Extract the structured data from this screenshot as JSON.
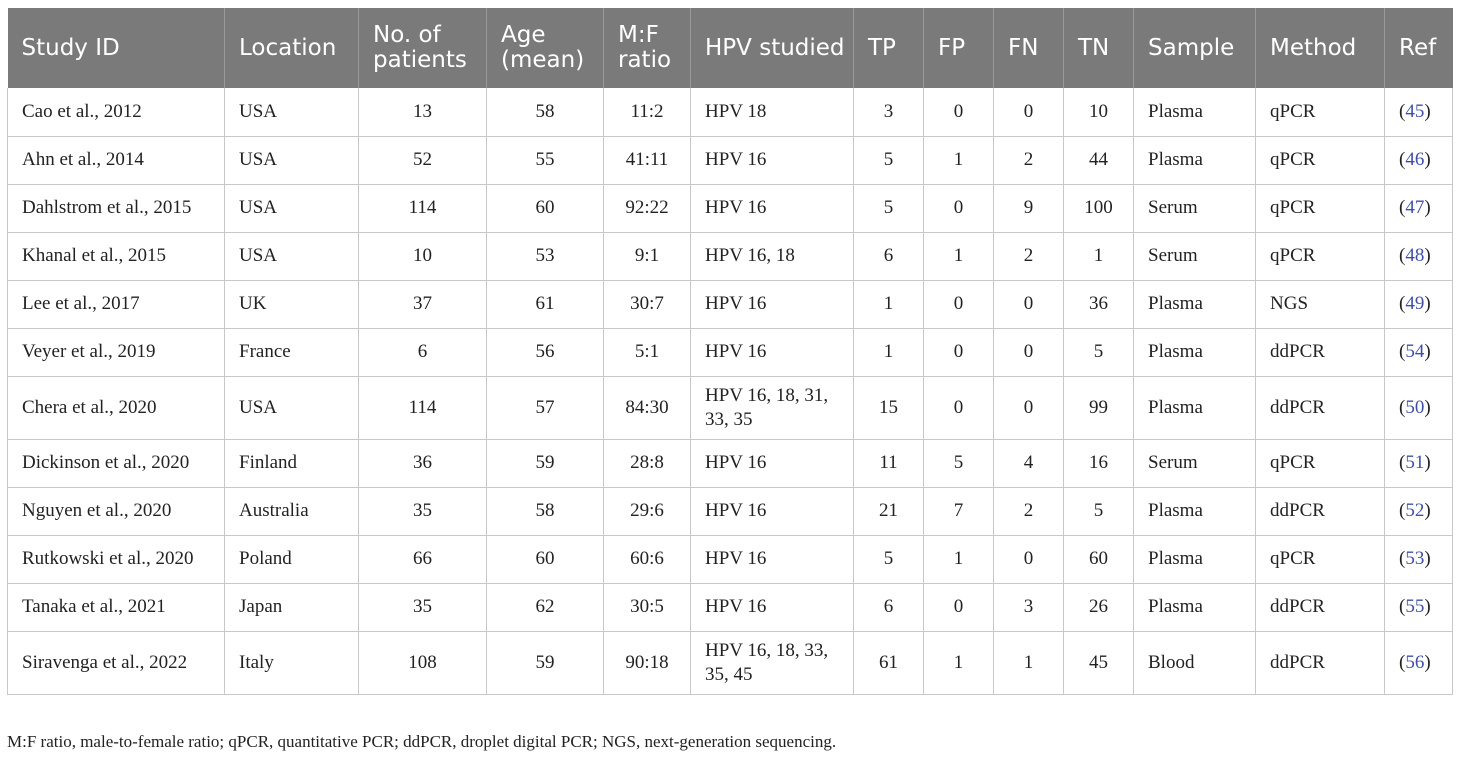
{
  "headers": [
    "Study ID",
    "Location",
    "No. of patients",
    "Age (mean)",
    "M:F ratio",
    "HPV studied",
    "TP",
    "FP",
    "FN",
    "TN",
    "Sample",
    "Method",
    "Ref"
  ],
  "rows": [
    {
      "study_id": "Cao et al., 2012",
      "location": "USA",
      "patients": "13",
      "age": "58",
      "mf_ratio": "11:2",
      "hpv": "HPV 18",
      "tp": "3",
      "fp": "0",
      "fn": "0",
      "tn": "10",
      "sample": "Plasma",
      "method": "qPCR",
      "ref": "45"
    },
    {
      "study_id": "Ahn et al., 2014",
      "location": "USA",
      "patients": "52",
      "age": "55",
      "mf_ratio": "41:11",
      "hpv": "HPV 16",
      "tp": "5",
      "fp": "1",
      "fn": "2",
      "tn": "44",
      "sample": "Plasma",
      "method": "qPCR",
      "ref": "46"
    },
    {
      "study_id": "Dahlstrom et al., 2015",
      "location": "USA",
      "patients": "114",
      "age": "60",
      "mf_ratio": "92:22",
      "hpv": "HPV 16",
      "tp": "5",
      "fp": "0",
      "fn": "9",
      "tn": "100",
      "sample": "Serum",
      "method": "qPCR",
      "ref": "47"
    },
    {
      "study_id": "Khanal et al., 2015",
      "location": "USA",
      "patients": "10",
      "age": "53",
      "mf_ratio": "9:1",
      "hpv": "HPV 16, 18",
      "tp": "6",
      "fp": "1",
      "fn": "2",
      "tn": "1",
      "sample": "Serum",
      "method": "qPCR",
      "ref": "48"
    },
    {
      "study_id": "Lee et al., 2017",
      "location": "UK",
      "patients": "37",
      "age": "61",
      "mf_ratio": "30:7",
      "hpv": "HPV 16",
      "tp": "1",
      "fp": "0",
      "fn": "0",
      "tn": "36",
      "sample": "Plasma",
      "method": "NGS",
      "ref": "49"
    },
    {
      "study_id": "Veyer et al., 2019",
      "location": "France",
      "patients": "6",
      "age": "56",
      "mf_ratio": "5:1",
      "hpv": "HPV 16",
      "tp": "1",
      "fp": "0",
      "fn": "0",
      "tn": "5",
      "sample": "Plasma",
      "method": "ddPCR",
      "ref": "54"
    },
    {
      "study_id": "Chera et al., 2020",
      "location": "USA",
      "patients": "114",
      "age": "57",
      "mf_ratio": "84:30",
      "hpv": "HPV 16, 18, 31, 33, 35",
      "tp": "15",
      "fp": "0",
      "fn": "0",
      "tn": "99",
      "sample": "Plasma",
      "method": "ddPCR",
      "ref": "50"
    },
    {
      "study_id": "Dickinson et al., 2020",
      "location": "Finland",
      "patients": "36",
      "age": "59",
      "mf_ratio": "28:8",
      "hpv": "HPV 16",
      "tp": "11",
      "fp": "5",
      "fn": "4",
      "tn": "16",
      "sample": "Serum",
      "method": "qPCR",
      "ref": "51"
    },
    {
      "study_id": "Nguyen et al., 2020",
      "location": "Australia",
      "patients": "35",
      "age": "58",
      "mf_ratio": "29:6",
      "hpv": "HPV 16",
      "tp": "21",
      "fp": "7",
      "fn": "2",
      "tn": "5",
      "sample": "Plasma",
      "method": "ddPCR",
      "ref": "52"
    },
    {
      "study_id": "Rutkowski et al., 2020",
      "location": "Poland",
      "patients": "66",
      "age": "60",
      "mf_ratio": "60:6",
      "hpv": "HPV 16",
      "tp": "5",
      "fp": "1",
      "fn": "0",
      "tn": "60",
      "sample": "Plasma",
      "method": "qPCR",
      "ref": "53"
    },
    {
      "study_id": "Tanaka et al., 2021",
      "location": "Japan",
      "patients": "35",
      "age": "62",
      "mf_ratio": "30:5",
      "hpv": "HPV 16",
      "tp": "6",
      "fp": "0",
      "fn": "3",
      "tn": "26",
      "sample": "Plasma",
      "method": "ddPCR",
      "ref": "55"
    },
    {
      "study_id": "Siravenga et al., 2022",
      "location": "Italy",
      "patients": "108",
      "age": "59",
      "mf_ratio": "90:18",
      "hpv": "HPV 16, 18, 33, 35, 45",
      "tp": "61",
      "fp": "1",
      "fn": "1",
      "tn": "45",
      "sample": "Blood",
      "method": "ddPCR",
      "ref": "56"
    }
  ],
  "footnote": "M:F ratio, male-to-female ratio; qPCR, quantitative PCR; ddPCR, droplet digital PCR; NGS, next-generation sequencing.",
  "colors": {
    "header_bg": "#7a7a7a",
    "header_text": "#ffffff",
    "ref_link": "#3f4fa6",
    "grid": "#c8c8c8"
  }
}
